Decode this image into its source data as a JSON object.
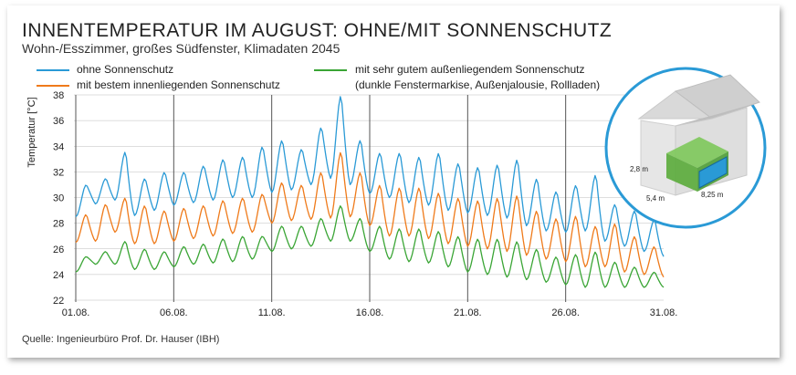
{
  "title": "INNENTEMPERATUR IM AUGUST: OHNE/MIT SONNENSCHUTZ",
  "subtitle": "Wohn-/Esszimmer, großes Südfenster, Klimadaten 2045",
  "source": "Quelle: Ingenieurbüro Prof. Dr. Hauser (IBH)",
  "legend": {
    "blue": "ohne Sonnenschutz",
    "orange": "mit bestem innenliegenden Sonnenschutz",
    "green_line1": "mit sehr gutem außenliegendem Sonnenschutz",
    "green_line2": "(dunkle Fenstermarkise, Außenjalousie, Rollladen)"
  },
  "colors": {
    "blue": "#2a9ad6",
    "orange": "#ef7a1a",
    "green": "#3aa535",
    "grid": "#555555"
  },
  "inset": {
    "height_label": "2,8 m",
    "depth_label": "5,4 m",
    "width_label": "8,25 m"
  },
  "chart_data": {
    "type": "line",
    "title": "INNENTEMPERATUR IM AUGUST: OHNE/MIT SONNENSCHUTZ",
    "xlabel": "",
    "ylabel": "Temperatur [°C]",
    "ylim": [
      22,
      38
    ],
    "yticks": [
      22,
      24,
      26,
      28,
      30,
      32,
      34,
      36,
      38
    ],
    "xlim": [
      1,
      31
    ],
    "xtick_days": [
      1,
      6,
      11,
      16,
      21,
      26,
      31
    ],
    "xtick_labels": [
      "01.08.",
      "06.08.",
      "11.08.",
      "16.08.",
      "21.08.",
      "26.08.",
      "31.08."
    ],
    "vertical_gridlines": [
      1,
      6,
      11,
      16,
      21,
      26
    ],
    "days": [
      1,
      2,
      3,
      4,
      5,
      6,
      7,
      8,
      9,
      10,
      11,
      12,
      13,
      14,
      15,
      16,
      17,
      18,
      19,
      20,
      21,
      22,
      23,
      24,
      25,
      26,
      27,
      28,
      29,
      30,
      31
    ],
    "series": [
      {
        "name": "ohne Sonnenschutz",
        "color": "blue",
        "daily_min": [
          28.5,
          29.5,
          29.8,
          28.6,
          29.0,
          29.4,
          29.6,
          29.8,
          30.0,
          30.0,
          30.4,
          30.6,
          31.0,
          31.5,
          31.0,
          30.3,
          30.0,
          29.6,
          29.4,
          29.0,
          28.8,
          28.6,
          28.4,
          27.8,
          27.4,
          27.3,
          27.4,
          26.6,
          26.2,
          25.8,
          25.4
        ],
        "daily_max": [
          31.0,
          31.5,
          33.6,
          31.5,
          32.0,
          32.0,
          32.5,
          33.0,
          33.2,
          34.0,
          34.5,
          33.8,
          35.5,
          38.0,
          34.5,
          33.5,
          33.5,
          33.2,
          33.5,
          32.7,
          32.4,
          32.6,
          33.0,
          31.5,
          30.5,
          31.0,
          31.8,
          29.5,
          29.0,
          28.3,
          27.0
        ]
      },
      {
        "name": "mit bestem innenliegenden Sonnenschutz",
        "color": "orange",
        "daily_min": [
          26.5,
          26.6,
          27.3,
          26.4,
          26.4,
          26.6,
          26.8,
          27.0,
          27.2,
          27.3,
          28.0,
          28.2,
          28.3,
          28.4,
          28.5,
          27.8,
          27.0,
          27.0,
          26.8,
          26.4,
          26.2,
          26.0,
          25.8,
          25.5,
          25.2,
          25.0,
          24.6,
          24.6,
          24.2,
          24.0,
          23.8
        ],
        "daily_max": [
          28.7,
          29.5,
          30.0,
          29.4,
          29.0,
          29.2,
          29.4,
          29.8,
          30.0,
          30.3,
          31.2,
          31.0,
          32.0,
          33.6,
          32.0,
          31.0,
          30.8,
          30.8,
          30.4,
          30.0,
          29.8,
          30.0,
          30.2,
          29.0,
          28.4,
          28.6,
          27.8,
          28.0,
          27.0,
          26.2,
          25.8
        ]
      },
      {
        "name": "mit sehr gutem außenliegendem Sonnenschutz",
        "color": "green",
        "daily_min": [
          24.2,
          24.8,
          24.8,
          24.4,
          24.4,
          24.6,
          24.8,
          24.9,
          25.0,
          25.2,
          25.8,
          26.0,
          26.2,
          26.6,
          26.6,
          25.8,
          25.2,
          25.0,
          24.9,
          24.6,
          24.2,
          24.0,
          23.8,
          23.6,
          23.4,
          23.2,
          23.0,
          23.0,
          23.0,
          23.0,
          23.0
        ],
        "daily_max": [
          25.4,
          25.8,
          26.6,
          26.0,
          25.8,
          26.2,
          26.4,
          26.8,
          27.0,
          27.0,
          27.8,
          27.8,
          28.4,
          29.4,
          28.4,
          27.8,
          27.6,
          27.6,
          27.4,
          27.0,
          26.8,
          26.8,
          26.6,
          26.0,
          25.4,
          25.6,
          25.8,
          25.0,
          24.6,
          24.2,
          24.2
        ]
      }
    ]
  }
}
